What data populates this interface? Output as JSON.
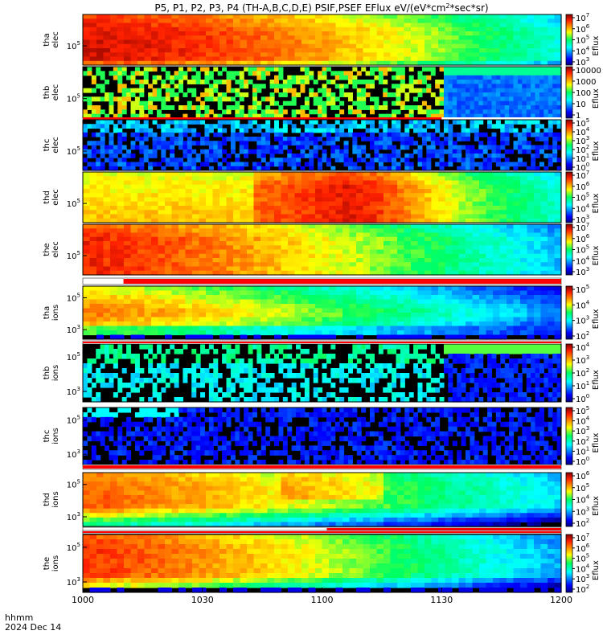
{
  "chart_data": {
    "type": "heatmap",
    "title": "P5, P1, P2, P3, P4 (TH-A,B,C,D,E) PSIF,PSEF EFlux eV/(eV*cm²*sec*sr)",
    "title_parts": {
      "main": "P5, P1, P2, P3, P4 (TH-A,B,C,D,E) PSIF,PSEF EFlux eV/(eV*cm",
      "sup": "2",
      "tail": "*sec*sr)"
    },
    "x_axis": {
      "ticks": [
        "1000",
        "1030",
        "1100",
        "1130",
        "1200"
      ],
      "time_range": [
        "1000",
        "1200"
      ],
      "annotation_lines": [
        "hhmm",
        "2024 Dec 14"
      ]
    },
    "colorbar_label": "Eflux",
    "y_tick_label": "10",
    "panels": [
      {
        "probe": "tha",
        "species": "elec",
        "kind": "elec_strong",
        "ytick_exps": [
          "5"
        ],
        "cbar_ticks": [
          {
            "b": "10",
            "e": "7"
          },
          {
            "b": "10",
            "e": "6"
          },
          {
            "b": "10",
            "e": "5"
          },
          {
            "b": "10",
            "e": "4"
          },
          {
            "b": "10",
            "e": "3"
          }
        ],
        "flux_range_log10": [
          3,
          7
        ],
        "quality_bar": null
      },
      {
        "probe": "thb",
        "species": "elec",
        "kind": "elec_sparse",
        "ytick_exps": [
          "5"
        ],
        "cbar_ticks": [
          {
            "b": "10000",
            "e": ""
          },
          {
            "b": "1000",
            "e": ""
          },
          {
            "b": "100",
            "e": ""
          },
          {
            "b": "10",
            "e": ""
          },
          {
            "b": "1",
            "e": ""
          }
        ],
        "flux_range_log10": [
          0,
          4
        ],
        "data_gap_until": "1130",
        "quality_bar": "red-partial"
      },
      {
        "probe": "thc",
        "species": "elec",
        "kind": "elec_faint",
        "ytick_exps": [
          "5"
        ],
        "cbar_ticks": [
          {
            "b": "10",
            "e": "5"
          },
          {
            "b": "10",
            "e": "4"
          },
          {
            "b": "10",
            "e": "3"
          },
          {
            "b": "10",
            "e": "2"
          },
          {
            "b": "10",
            "e": "1"
          },
          {
            "b": "10",
            "e": "0"
          }
        ],
        "flux_range_log10": [
          0,
          5
        ],
        "quality_bar": null
      },
      {
        "probe": "thd",
        "species": "elec",
        "kind": "elec_strong_d",
        "ytick_exps": [
          "5"
        ],
        "cbar_ticks": [
          {
            "b": "10",
            "e": "7"
          },
          {
            "b": "10",
            "e": "6"
          },
          {
            "b": "10",
            "e": "5"
          },
          {
            "b": "10",
            "e": "4"
          },
          {
            "b": "10",
            "e": "3"
          }
        ],
        "flux_range_log10": [
          3,
          7
        ],
        "quality_bar": null
      },
      {
        "probe": "the",
        "species": "elec",
        "kind": "elec_strong_e",
        "ytick_exps": [
          "5"
        ],
        "cbar_ticks": [
          {
            "b": "10",
            "e": "7"
          },
          {
            "b": "10",
            "e": "6"
          },
          {
            "b": "10",
            "e": "5"
          },
          {
            "b": "10",
            "e": "4"
          },
          {
            "b": "10",
            "e": "3"
          }
        ],
        "flux_range_log10": [
          3,
          7
        ],
        "quality_bar": null
      },
      {
        "probe": "tha",
        "species": "ions",
        "kind": "ion_a",
        "ytick_exps": [
          "5",
          "3"
        ],
        "cbar_ticks": [
          {
            "b": "10",
            "e": "5"
          },
          {
            "b": "10",
            "e": "4"
          },
          {
            "b": "10",
            "e": "3"
          },
          {
            "b": "10",
            "e": "2"
          }
        ],
        "flux_range_log10": [
          2,
          5
        ],
        "quality_bar": "red-after-1010"
      },
      {
        "probe": "thb",
        "species": "ions",
        "kind": "ion_sparse",
        "ytick_exps": [
          "5",
          "3"
        ],
        "cbar_ticks": [
          {
            "b": "10",
            "e": "4"
          },
          {
            "b": "10",
            "e": "3"
          },
          {
            "b": "10",
            "e": "2"
          },
          {
            "b": "10",
            "e": "1"
          },
          {
            "b": "10",
            "e": "0"
          }
        ],
        "flux_range_log10": [
          0,
          4
        ],
        "data_gap_until": "1130",
        "quality_bar": "red"
      },
      {
        "probe": "thc",
        "species": "ions",
        "kind": "ion_faint",
        "ytick_exps": [
          "5",
          "3"
        ],
        "cbar_ticks": [
          {
            "b": "10",
            "e": "5"
          },
          {
            "b": "10",
            "e": "4"
          },
          {
            "b": "10",
            "e": "3"
          },
          {
            "b": "10",
            "e": "2"
          },
          {
            "b": "10",
            "e": "1"
          },
          {
            "b": "10",
            "e": "0"
          }
        ],
        "flux_range_log10": [
          0,
          5
        ],
        "quality_bar": "red"
      },
      {
        "probe": "thd",
        "species": "ions",
        "kind": "ion_d",
        "ytick_exps": [
          "5",
          "3"
        ],
        "cbar_ticks": [
          {
            "b": "10",
            "e": "6"
          },
          {
            "b": "10",
            "e": "5"
          },
          {
            "b": "10",
            "e": "4"
          },
          {
            "b": "10",
            "e": "3"
          },
          {
            "b": "10",
            "e": "2"
          }
        ],
        "flux_range_log10": [
          2,
          6
        ],
        "quality_bar": "red-after-1105"
      },
      {
        "probe": "the",
        "species": "ions",
        "kind": "ion_e",
        "ytick_exps": [
          "5",
          "3"
        ],
        "cbar_ticks": [
          {
            "b": "10",
            "e": "7"
          },
          {
            "b": "10",
            "e": "6"
          },
          {
            "b": "10",
            "e": "5"
          },
          {
            "b": "10",
            "e": "4"
          },
          {
            "b": "10",
            "e": "3"
          },
          {
            "b": "10",
            "e": "2"
          }
        ],
        "flux_range_log10": [
          2,
          7
        ],
        "quality_bar": "red"
      }
    ]
  }
}
